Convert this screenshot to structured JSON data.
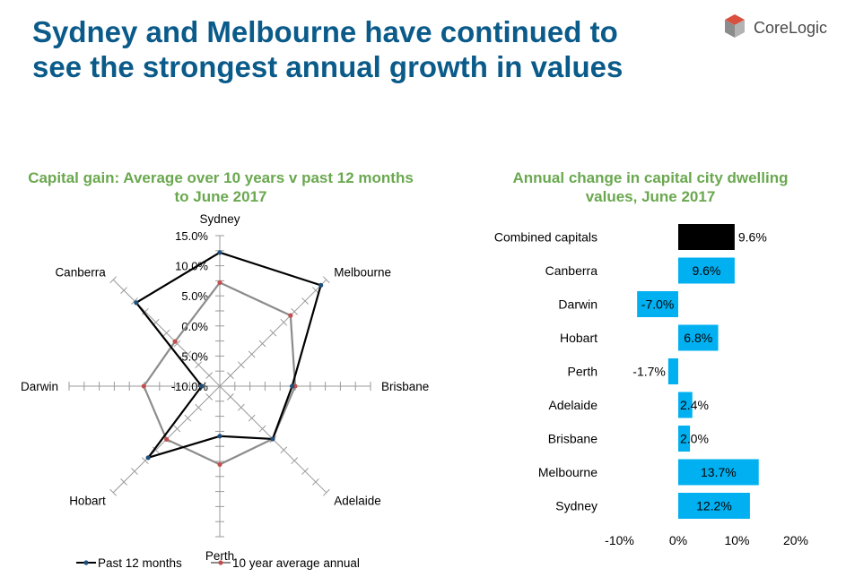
{
  "page": {
    "title_line1": "Sydney and Melbourne have continued to",
    "title_line2": "see the strongest annual growth in values",
    "logo_text": "CoreLogic",
    "colors": {
      "title": "#0a5a8a",
      "chart_title": "#6aa84f",
      "bar": "#00b0f0",
      "combined_bar": "#000000",
      "logo_red": "#d9503f",
      "logo_grey": "#8c8c8c"
    }
  },
  "chart_data": [
    {
      "type": "radar",
      "title_line1": "Capital gain: Average over 10 years v past 12 months",
      "title_line2": "to June 2017",
      "axes": [
        "Sydney",
        "Melbourne",
        "Brisbane",
        "Adelaide",
        "Perth",
        "Hobart",
        "Darwin",
        "Canberra"
      ],
      "range": [
        -10,
        15
      ],
      "tick_step": 2.5,
      "tick_labels": [
        "15.0%",
        "10.0%",
        "5.0%",
        "0.0%",
        "-5.0%",
        "-10.0%"
      ],
      "tick_label_values": [
        15,
        10,
        5,
        0,
        -5,
        -10
      ],
      "series": [
        {
          "name": "Past 12 months",
          "color": "#000000",
          "values": [
            12.2,
            13.7,
            2.0,
            2.4,
            -1.7,
            6.8,
            -7.0,
            9.6
          ]
        },
        {
          "name": "10 year average annual",
          "color": "#8c8c8c",
          "values": [
            7.2,
            6.6,
            2.5,
            2.4,
            3.0,
            2.5,
            2.6,
            0.5
          ]
        }
      ],
      "legend_position": "bottom"
    },
    {
      "type": "bar",
      "orientation": "horizontal",
      "title_line1": "Annual change in capital city dwelling",
      "title_line2": "values, June 2017",
      "categories": [
        "Combined capitals",
        "Canberra",
        "Darwin",
        "Hobart",
        "Perth",
        "Adelaide",
        "Brisbane",
        "Melbourne",
        "Sydney"
      ],
      "values": [
        9.6,
        9.6,
        -7.0,
        6.8,
        -1.7,
        2.4,
        2.0,
        13.7,
        12.2
      ],
      "labels": [
        "9.6%",
        "9.6%",
        "-7.0%",
        "6.8%",
        "-1.7%",
        "2.4%",
        "2.0%",
        "13.7%",
        "12.2%"
      ],
      "xlim": [
        -10,
        20
      ],
      "xticks": [
        -10,
        0,
        10,
        20
      ],
      "xtick_labels": [
        "-10%",
        "0%",
        "10%",
        "20%"
      ]
    }
  ]
}
